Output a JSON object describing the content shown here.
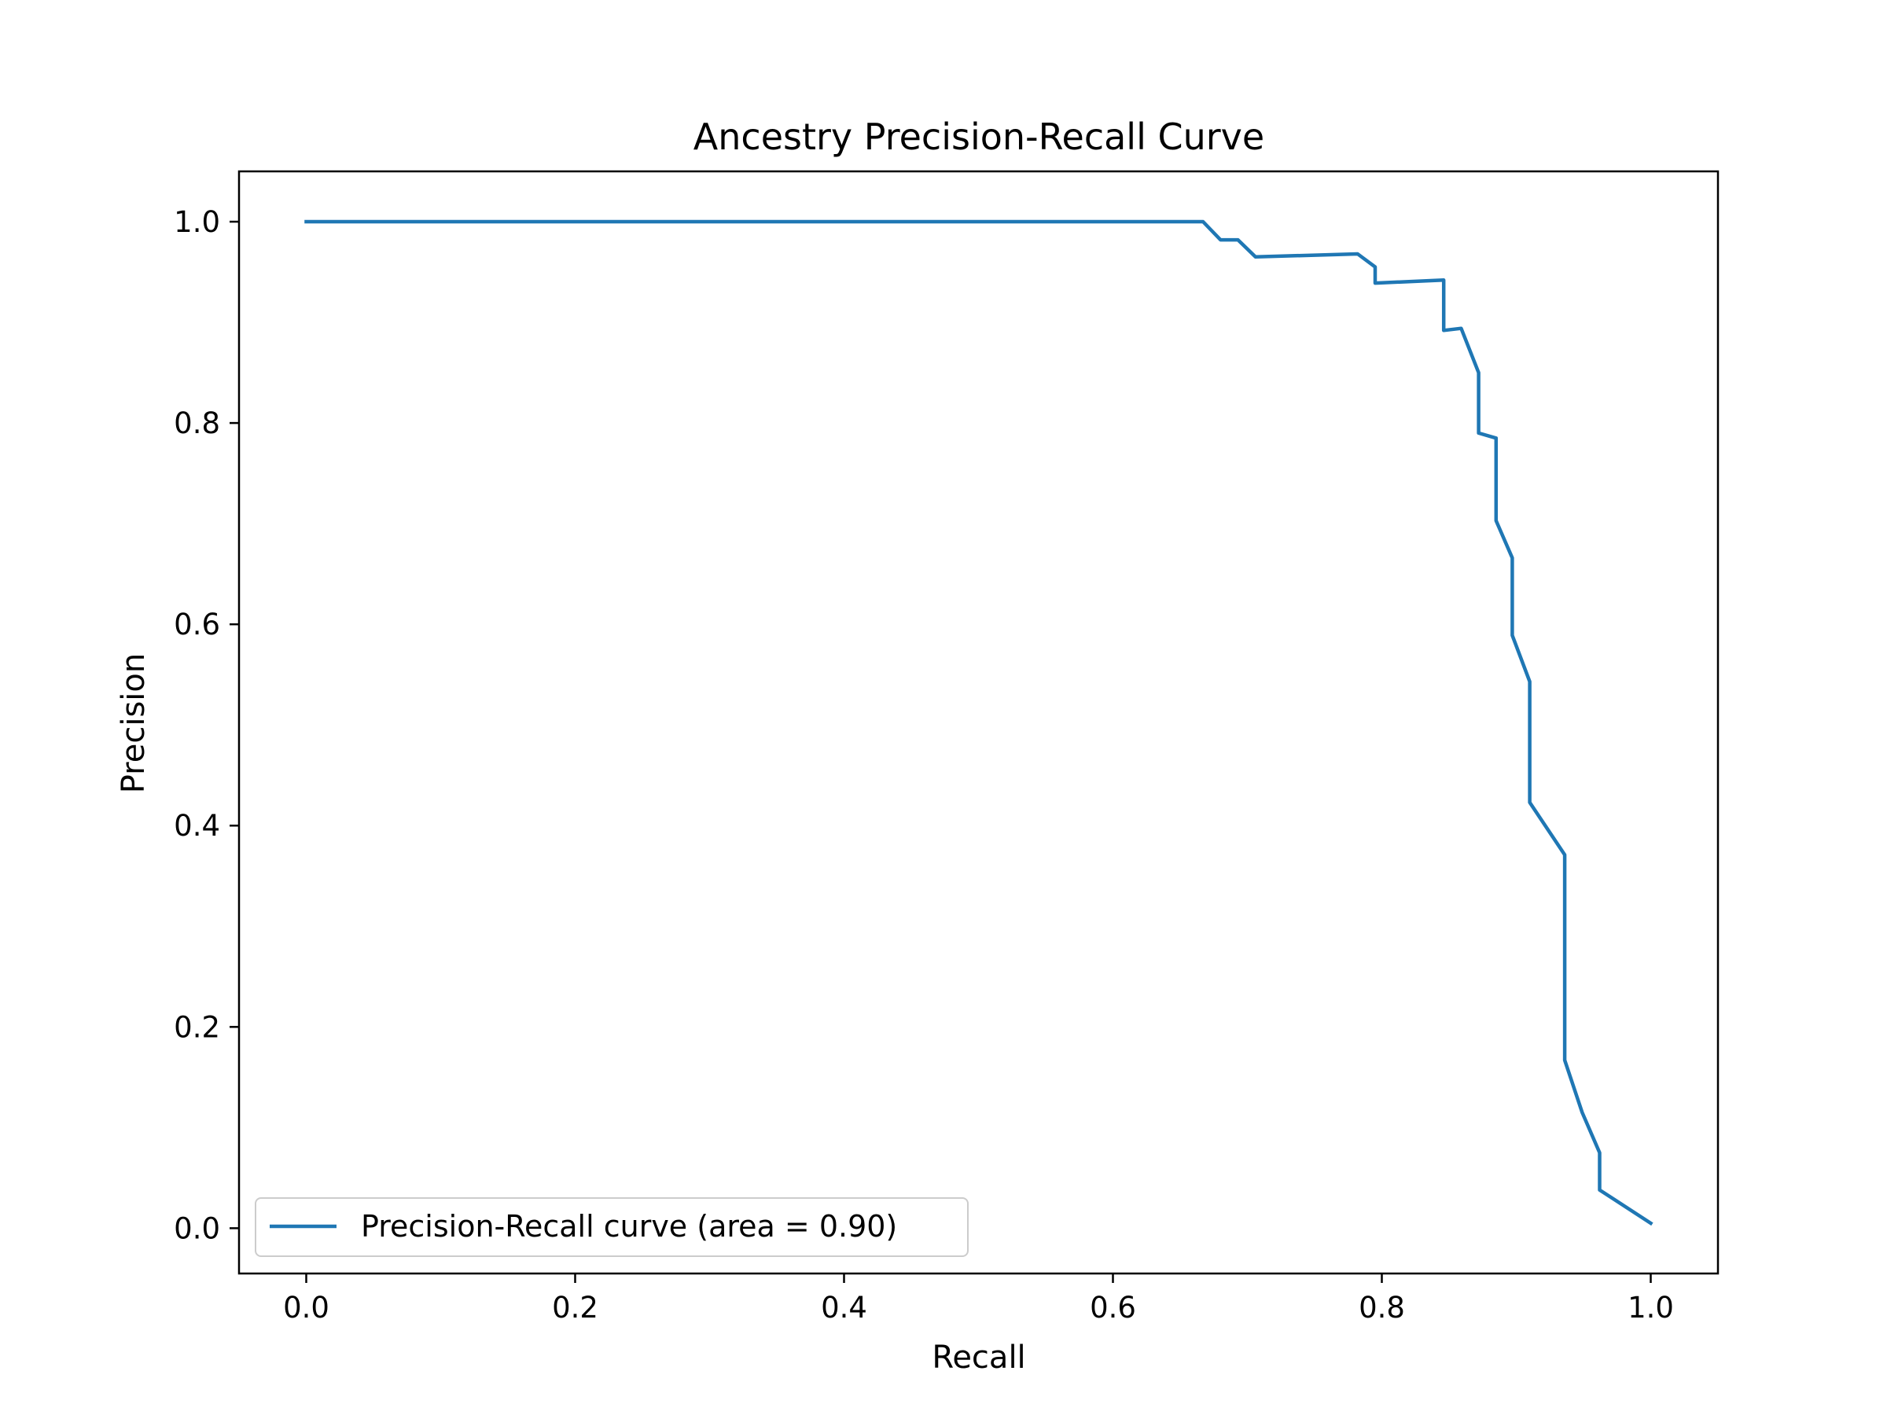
{
  "chart_data": {
    "type": "line",
    "title": "Ancestry Precision-Recall Curve",
    "xlabel": "Recall",
    "ylabel": "Precision",
    "xlim": [
      -0.05,
      1.05
    ],
    "ylim": [
      -0.045,
      1.05
    ],
    "xticks": [
      0.0,
      0.2,
      0.4,
      0.6,
      0.8,
      1.0
    ],
    "xtick_labels": [
      "0.0",
      "0.2",
      "0.4",
      "0.6",
      "0.8",
      "1.0"
    ],
    "yticks": [
      0.0,
      0.2,
      0.4,
      0.6,
      0.8,
      1.0
    ],
    "ytick_labels": [
      "0.0",
      "0.2",
      "0.4",
      "0.6",
      "0.8",
      "1.0"
    ],
    "grid": false,
    "legend_position": "lower-left",
    "series": [
      {
        "name": "Precision-Recall curve (area = 0.90)",
        "color": "#1f77b4",
        "x": [
          0.0,
          0.667,
          0.68,
          0.693,
          0.706,
          0.782,
          0.795,
          0.795,
          0.846,
          0.846,
          0.859,
          0.872,
          0.872,
          0.885,
          0.885,
          0.897,
          0.897,
          0.91,
          0.91,
          0.936,
          0.936,
          0.949,
          0.962,
          0.962,
          1.0
        ],
        "y": [
          1.0,
          1.0,
          0.982,
          0.982,
          0.965,
          0.968,
          0.955,
          0.939,
          0.942,
          0.892,
          0.894,
          0.85,
          0.79,
          0.785,
          0.703,
          0.666,
          0.589,
          0.543,
          0.423,
          0.371,
          0.167,
          0.115,
          0.075,
          0.038,
          0.005
        ]
      }
    ]
  }
}
